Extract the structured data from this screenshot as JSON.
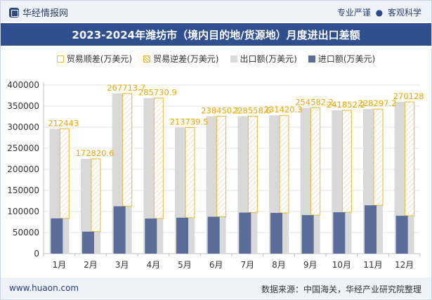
{
  "header": {
    "brand": "华经情报网",
    "tagline_left": "专业严谨",
    "tagline_dot": "●",
    "tagline_right": "客观科学"
  },
  "chart_title": "2023-2024年潍坊市（境内目的地/货源地）月度进出口差额",
  "legend": {
    "surplus": "贸易顺差(万美元)",
    "deficit": "贸易逆差(万美元)",
    "export": "出口额(万美元)",
    "import": "进口额(万美元)"
  },
  "colors": {
    "export": "#d9d9d9",
    "import": "#5a6d99",
    "surplus": "#e8b92e",
    "title_bg": "#2f4f8f"
  },
  "chart_data": {
    "type": "bar",
    "title": "2023-2024年潍坊市（境内目的地/货源地）月度进出口差额",
    "categories": [
      "1月",
      "2月",
      "3月",
      "4月",
      "5月",
      "6月",
      "7月",
      "8月",
      "9月",
      "10月",
      "11月",
      "12月"
    ],
    "series": [
      {
        "name": "出口额(万美元)",
        "values": [
          296000,
          225000,
          380000,
          369000,
          299000,
          326000,
          326000,
          328000,
          346000,
          340000,
          343000,
          360000
        ]
      },
      {
        "name": "进口额(万美元)",
        "values": [
          83557,
          52179,
          112286,
          83269,
          85260,
          87550,
          97441,
          96580,
          91418,
          98148,
          114703,
          89872
        ]
      },
      {
        "name": "贸易顺差(万美元)",
        "values": [
          212443,
          172820.6,
          267713.7,
          285730.9,
          213739.5,
          238450.2,
          228558.6,
          231420.3,
          254582.2,
          241852.2,
          228297.2,
          270128
        ]
      },
      {
        "name": "贸易逆差(万美元)",
        "values": [
          0,
          0,
          0,
          0,
          0,
          0,
          0,
          0,
          0,
          0,
          0,
          0
        ]
      }
    ],
    "value_labels": [
      "212443",
      "172820.6",
      "267713.7",
      "285730.9",
      "213739.5",
      "238450.2",
      "228558.6",
      "231420.3",
      "254582.2",
      "241852.2",
      "228297.2",
      "270128"
    ],
    "y_ticks": [
      "0",
      "50000",
      "100000",
      "150000",
      "200000",
      "250000",
      "300000",
      "350000",
      "400000"
    ],
    "ylim": [
      0,
      400000
    ],
    "legend_position": "top"
  },
  "footer": {
    "site": "www.huaon.com",
    "source": "数据来源：中国海关，华经产业研究院整理"
  }
}
